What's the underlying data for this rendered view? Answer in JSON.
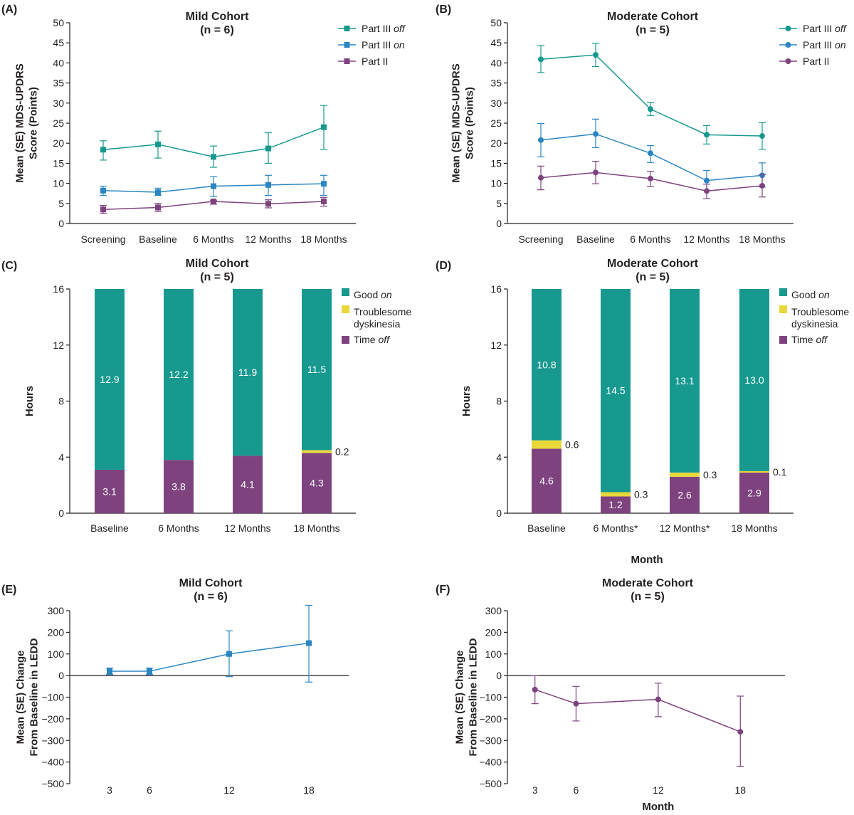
{
  "colors": {
    "teal": "#17998f",
    "blue": "#2a86c2",
    "purple": "#7e437f",
    "yellow": "#e8d83a",
    "axis": "#231f20"
  },
  "chart_data": [
    {
      "id": "A",
      "panel_label": "(A)",
      "type": "line",
      "marker": "square",
      "title": [
        "Mild Cohort",
        "(n = 6)"
      ],
      "ylabel": [
        "Mean (SE) MDS-UPDRS",
        "Score (Points)"
      ],
      "xlabel": "",
      "ylim": [
        0,
        50
      ],
      "yticks": [
        0,
        5,
        10,
        15,
        20,
        25,
        30,
        35,
        40,
        45,
        50
      ],
      "categories": [
        "Screening",
        "Baseline",
        "6 Months",
        "12 Months",
        "18 Months"
      ],
      "series": [
        {
          "name": "Part III off",
          "legend": [
            "Part III ",
            "off"
          ],
          "color": "#17998f",
          "values": [
            18.4,
            19.7,
            16.6,
            18.7,
            24.0
          ],
          "err": [
            [
              15.8,
              20.6
            ],
            [
              16.3,
              23.0
            ],
            [
              14.0,
              19.3
            ],
            [
              15.0,
              22.6
            ],
            [
              18.5,
              29.4
            ]
          ]
        },
        {
          "name": "Part III on",
          "legend": [
            "Part III ",
            "on"
          ],
          "color": "#2a86c2",
          "values": [
            8.2,
            7.8,
            9.3,
            9.6,
            9.9
          ],
          "err": [
            [
              7.0,
              9.3
            ],
            [
              7.0,
              8.8
            ],
            [
              6.7,
              11.7
            ],
            [
              7.0,
              12.0
            ],
            [
              7.0,
              12.0
            ]
          ]
        },
        {
          "name": "Part II",
          "legend": [
            "Part II",
            ""
          ],
          "color": "#7e437f",
          "values": [
            3.5,
            4.0,
            5.5,
            4.9,
            5.5
          ],
          "err": [
            [
              2.5,
              4.5
            ],
            [
              3.0,
              5.0
            ],
            [
              4.8,
              5.8
            ],
            [
              3.9,
              5.9
            ],
            [
              4.3,
              6.5
            ]
          ]
        }
      ]
    },
    {
      "id": "B",
      "panel_label": "(B)",
      "type": "line",
      "marker": "circle",
      "title": [
        "Moderate Cohort",
        "(n = 5)"
      ],
      "ylabel": [
        "Mean (SE) MDS-UPDRS",
        "Score (Points)"
      ],
      "xlabel": "",
      "ylim": [
        0,
        50
      ],
      "yticks": [
        0,
        5,
        10,
        15,
        20,
        25,
        30,
        35,
        40,
        45,
        50
      ],
      "categories": [
        "Screening",
        "Baseline",
        "6 Months",
        "12 Months",
        "18 Months"
      ],
      "series": [
        {
          "name": "Part III off",
          "legend": [
            "Part III ",
            "off"
          ],
          "color": "#17998f",
          "values": [
            40.9,
            42.0,
            28.5,
            22.1,
            21.8
          ],
          "err": [
            [
              37.6,
              44.3
            ],
            [
              39.1,
              44.9
            ],
            [
              26.9,
              30.2
            ],
            [
              19.8,
              24.4
            ],
            [
              18.5,
              25.1
            ]
          ]
        },
        {
          "name": "Part III on",
          "legend": [
            "Part III ",
            "on"
          ],
          "color": "#2a86c2",
          "values": [
            20.8,
            22.3,
            17.5,
            10.7,
            12.0
          ],
          "err": [
            [
              16.6,
              24.9
            ],
            [
              18.9,
              26.0
            ],
            [
              15.2,
              19.4
            ],
            [
              8.3,
              13.2
            ],
            [
              9.1,
              15.1
            ]
          ]
        },
        {
          "name": "Part II",
          "legend": [
            "Part II",
            ""
          ],
          "color": "#7e437f",
          "values": [
            11.4,
            12.7,
            11.2,
            8.1,
            9.4
          ],
          "err": [
            [
              8.4,
              14.3
            ],
            [
              9.9,
              15.5
            ],
            [
              9.2,
              13.0
            ],
            [
              6.2,
              9.8
            ],
            [
              6.6,
              12.2
            ]
          ]
        }
      ]
    },
    {
      "id": "C",
      "panel_label": "(C)",
      "type": "bar",
      "stacked": true,
      "title": [
        "Mild Cohort",
        "(n = 5)"
      ],
      "ylabel": [
        "Hours"
      ],
      "xlabel": "",
      "ylim": [
        0,
        16
      ],
      "yticks": [
        0,
        4,
        8,
        12,
        16
      ],
      "categories": [
        "Baseline",
        "6 Months",
        "12 Months",
        "18 Months"
      ],
      "series": [
        {
          "name": "Time off",
          "legend": [
            "Time ",
            "off"
          ],
          "color": "#7e437f",
          "values": [
            3.1,
            3.8,
            4.1,
            4.3
          ],
          "labels": [
            "3.1",
            "3.8",
            "4.1",
            "4.3"
          ]
        },
        {
          "name": "Troublesome dyskinesia",
          "legend": [
            "Troublesome",
            "dyskinesia"
          ],
          "color": "#e8d83a",
          "values": [
            0,
            0,
            0,
            0.2
          ],
          "labels": [
            "",
            "",
            "",
            "0.2"
          ]
        },
        {
          "name": "Good on",
          "legend": [
            "Good ",
            "on"
          ],
          "color": "#17998f",
          "values": [
            12.9,
            12.2,
            11.9,
            11.5
          ],
          "labels": [
            "12.9",
            "12.2",
            "11.9",
            "11.5"
          ]
        }
      ]
    },
    {
      "id": "D",
      "panel_label": "(D)",
      "type": "bar",
      "stacked": true,
      "title": [
        "Moderate Cohort",
        "(n = 5)"
      ],
      "ylabel": [
        "Hours"
      ],
      "xlabel": "Month",
      "ylim": [
        0,
        16
      ],
      "yticks": [
        0,
        4,
        8,
        12,
        16
      ],
      "categories": [
        "Baseline",
        "6 Months*",
        "12 Months*",
        "18 Months"
      ],
      "series": [
        {
          "name": "Time off",
          "legend": [
            "Time ",
            "off"
          ],
          "color": "#7e437f",
          "values": [
            4.6,
            1.2,
            2.6,
            2.9
          ],
          "labels": [
            "4.6",
            "1.2",
            "2.6",
            "2.9"
          ]
        },
        {
          "name": "Troublesome dyskinesia",
          "legend": [
            "Troublesome",
            "dyskinesia"
          ],
          "color": "#e8d83a",
          "values": [
            0.6,
            0.3,
            0.3,
            0.1
          ],
          "labels": [
            "0.6",
            "0.3",
            "0.3",
            "0.1"
          ]
        },
        {
          "name": "Good on",
          "legend": [
            "Good ",
            "on"
          ],
          "color": "#17998f",
          "values": [
            10.8,
            14.5,
            13.1,
            13.0
          ],
          "labels": [
            "10.8",
            "14.5",
            "13.1",
            "13.0"
          ]
        }
      ]
    },
    {
      "id": "E",
      "panel_label": "(E)",
      "type": "line",
      "marker": "square",
      "title": [
        "Mild Cohort",
        "(n = 6)"
      ],
      "ylabel": [
        "Mean (SE) Change",
        "From Baseline in LEDD"
      ],
      "xlabel": "",
      "ylim": [
        -500,
        300
      ],
      "yticks": [
        -500,
        -400,
        -300,
        -200,
        -100,
        0,
        100,
        200,
        300
      ],
      "xlim": [
        0,
        21
      ],
      "x": [
        3,
        6,
        12,
        18
      ],
      "series": [
        {
          "name": "LEDD change",
          "color": "#2a86c2",
          "values": [
            20,
            20,
            100,
            150
          ],
          "err": [
            [
              5,
              35
            ],
            [
              5,
              35
            ],
            [
              -5,
              207
            ],
            [
              -30,
              325
            ]
          ]
        }
      ]
    },
    {
      "id": "F",
      "panel_label": "(F)",
      "type": "line",
      "marker": "circle",
      "title": [
        "Moderate Cohort",
        "(n = 5)"
      ],
      "ylabel": [
        "Mean (SE) Change",
        "From Baseline in LEDD"
      ],
      "xlabel": "Month",
      "ylim": [
        -500,
        300
      ],
      "yticks": [
        -500,
        -400,
        -300,
        -200,
        -100,
        0,
        100,
        200,
        300
      ],
      "xlim": [
        0,
        21
      ],
      "x": [
        3,
        6,
        12,
        18
      ],
      "series": [
        {
          "name": "LEDD change",
          "color": "#7e437f",
          "values": [
            -65,
            -130,
            -110,
            -260
          ],
          "err": [
            [
              -130,
              0
            ],
            [
              -210,
              -50
            ],
            [
              -190,
              -35
            ],
            [
              -420,
              -95
            ]
          ]
        }
      ]
    }
  ]
}
